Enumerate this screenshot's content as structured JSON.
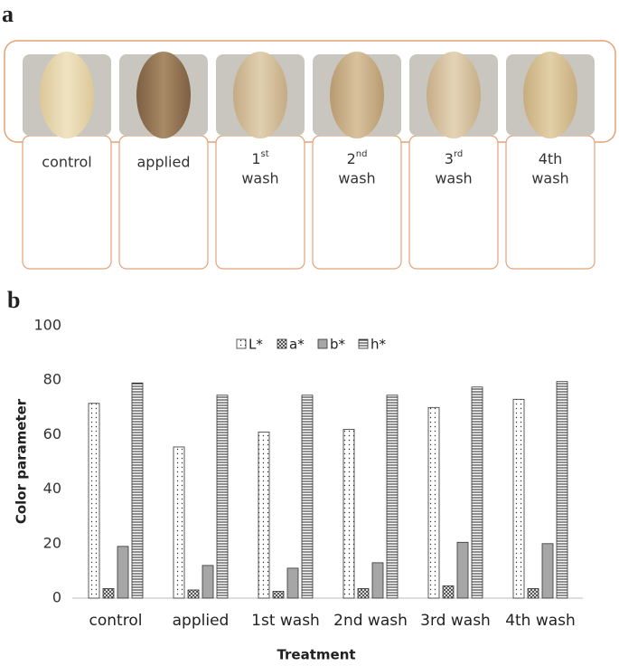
{
  "panel_a": {
    "label": "a",
    "samples": [
      {
        "word": "control"
      },
      {
        "word": "applied"
      },
      {
        "number": "1",
        "suffix": "st",
        "word": "wash"
      },
      {
        "number": "2",
        "suffix": "nd",
        "word": "wash"
      },
      {
        "number": "3",
        "suffix": "rd",
        "word": "wash"
      },
      {
        "number": "4th",
        "word": "wash"
      }
    ]
  },
  "panel_b": {
    "label": "b"
  },
  "chart_data": {
    "type": "bar",
    "x_label": "Treatment",
    "y_label": "Color parameter",
    "categories": [
      "control",
      "applied",
      "1st wash",
      "2nd wash",
      "3rd wash",
      "4th wash"
    ],
    "series": [
      {
        "name": "L*",
        "color": "#ffffff",
        "pattern": "dots",
        "values": [
          71.5,
          55.5,
          61,
          62,
          70,
          73
        ]
      },
      {
        "name": "a*",
        "color": "#ffffff",
        "pattern": "crosshatch",
        "values": [
          3.5,
          3,
          2.5,
          3.5,
          4.5,
          3.5
        ]
      },
      {
        "name": "b*",
        "color": "#a6a6a6",
        "pattern": "solid",
        "values": [
          19,
          12,
          11,
          13,
          20.5,
          20
        ]
      },
      {
        "name": "h*",
        "color": "#ffffff",
        "pattern": "hlines",
        "values": [
          79,
          74.5,
          74.5,
          74.5,
          77.5,
          79.5
        ]
      }
    ],
    "ylim": [
      0,
      100
    ],
    "yticks": [
      0,
      20,
      40,
      60,
      80,
      100
    ],
    "grid": false,
    "legend": "top"
  }
}
